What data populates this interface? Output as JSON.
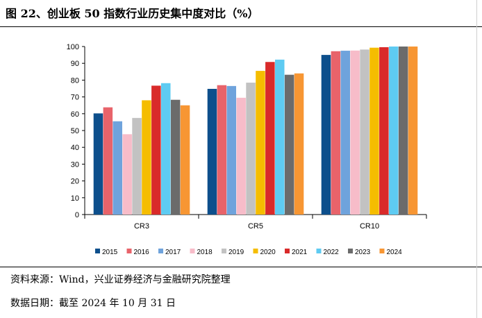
{
  "header": {
    "title": "图 22、创业板 50 指数行业历史集中度对比（%）"
  },
  "footer": {
    "source": "资料来源：Wind，兴业证券经济与金融研究院整理",
    "date": "数据日期：截至 2024 年 10 月 31 日"
  },
  "colors": {
    "2015": "#0d4f8c",
    "2016": "#e8636a",
    "2017": "#6fa3dc",
    "2018": "#f7bcc9",
    "2019": "#c2c2c2",
    "2020": "#f5bd00",
    "2021": "#d92a2a",
    "2022": "#5ecbf2",
    "2023": "#6b6b6b",
    "2024": "#f79633"
  },
  "chart_data": {
    "type": "bar",
    "title": "",
    "xlabel": "",
    "ylabel": "",
    "ylim": [
      0,
      100
    ],
    "yticks": [
      0,
      10,
      20,
      30,
      40,
      50,
      60,
      70,
      80,
      90,
      100
    ],
    "grid": false,
    "legend_position": "bottom",
    "categories": [
      "CR3",
      "CR5",
      "CR10"
    ],
    "series": [
      {
        "name": "2015",
        "values": [
          60.2,
          74.8,
          95.0
        ]
      },
      {
        "name": "2016",
        "values": [
          63.8,
          77.0,
          97.2
        ]
      },
      {
        "name": "2017",
        "values": [
          55.5,
          76.5,
          97.5
        ]
      },
      {
        "name": "2018",
        "values": [
          47.8,
          69.5,
          97.6
        ]
      },
      {
        "name": "2019",
        "values": [
          57.5,
          78.5,
          98.2
        ]
      },
      {
        "name": "2020",
        "values": [
          68.0,
          85.5,
          99.3
        ]
      },
      {
        "name": "2021",
        "values": [
          76.7,
          90.8,
          99.6
        ]
      },
      {
        "name": "2022",
        "values": [
          78.2,
          92.2,
          100.0
        ]
      },
      {
        "name": "2023",
        "values": [
          68.3,
          83.2,
          100.0
        ]
      },
      {
        "name": "2024",
        "values": [
          65.0,
          84.0,
          100.0
        ]
      }
    ]
  }
}
